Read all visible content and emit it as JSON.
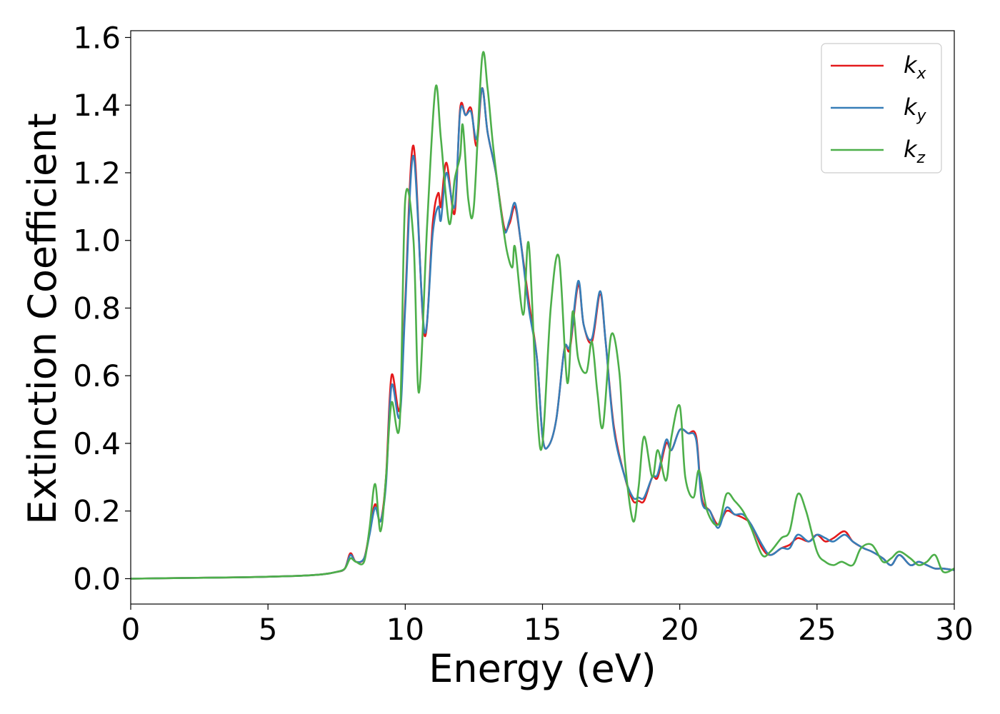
{
  "chart_data": {
    "type": "line",
    "title": "",
    "xlabel": "Energy (eV)",
    "ylabel": "Extinction Coefficient",
    "xlim": [
      0,
      30
    ],
    "ylim": [
      -0.075,
      1.62
    ],
    "xticks": [
      0,
      5,
      10,
      15,
      20,
      25,
      30
    ],
    "yticks": [
      0.0,
      0.2,
      0.4,
      0.6,
      0.8,
      1.0,
      1.2,
      1.4,
      1.6
    ],
    "grid": false,
    "legend_position": "top-right",
    "series": [
      {
        "name": "k_x",
        "label_base": "k",
        "label_sub": "x",
        "color": "#e41a1c",
        "x": [
          0,
          2,
          4,
          6,
          7,
          7.5,
          7.8,
          8.0,
          8.2,
          8.5,
          8.7,
          8.9,
          9.1,
          9.3,
          9.5,
          9.8,
          10.0,
          10.3,
          10.7,
          11.0,
          11.2,
          11.3,
          11.5,
          11.8,
          12.0,
          12.2,
          12.4,
          12.6,
          12.8,
          13.0,
          13.3,
          13.6,
          13.8,
          14.0,
          14.2,
          14.5,
          14.8,
          15.0,
          15.2,
          15.5,
          15.8,
          16.0,
          16.3,
          16.5,
          16.8,
          17.1,
          17.3,
          17.6,
          18.0,
          18.3,
          18.5,
          18.7,
          19.0,
          19.2,
          19.5,
          19.7,
          20.0,
          20.3,
          20.6,
          20.8,
          21.1,
          21.4,
          21.7,
          22.0,
          22.3,
          22.6,
          23.0,
          23.3,
          23.7,
          24.0,
          24.3,
          24.7,
          25.0,
          25.3,
          25.6,
          26.0,
          26.3,
          26.7,
          27.0,
          27.4,
          27.7,
          28.0,
          28.4,
          28.7,
          29.0,
          29.3,
          29.6,
          30.0
        ],
        "values": [
          0.0,
          0.002,
          0.004,
          0.008,
          0.013,
          0.02,
          0.03,
          0.075,
          0.05,
          0.06,
          0.14,
          0.22,
          0.17,
          0.3,
          0.6,
          0.5,
          0.82,
          1.28,
          0.72,
          1.05,
          1.14,
          1.1,
          1.23,
          1.08,
          1.39,
          1.37,
          1.39,
          1.28,
          1.45,
          1.32,
          1.2,
          1.04,
          1.05,
          1.1,
          1.0,
          0.82,
          0.65,
          0.42,
          0.39,
          0.47,
          0.68,
          0.68,
          0.87,
          0.75,
          0.7,
          0.84,
          0.7,
          0.45,
          0.3,
          0.23,
          0.23,
          0.23,
          0.3,
          0.3,
          0.4,
          0.38,
          0.44,
          0.43,
          0.42,
          0.24,
          0.2,
          0.16,
          0.2,
          0.19,
          0.18,
          0.16,
          0.09,
          0.07,
          0.09,
          0.1,
          0.12,
          0.11,
          0.13,
          0.11,
          0.12,
          0.14,
          0.11,
          0.09,
          0.08,
          0.06,
          0.04,
          0.07,
          0.04,
          0.05,
          0.04,
          0.03,
          0.03,
          0.025
        ]
      },
      {
        "name": "k_y",
        "label_base": "k",
        "label_sub": "y",
        "color": "#377eb8",
        "x": [
          0,
          2,
          4,
          6,
          7,
          7.5,
          7.8,
          8.0,
          8.2,
          8.5,
          8.7,
          8.9,
          9.1,
          9.3,
          9.5,
          9.8,
          10.0,
          10.3,
          10.7,
          11.0,
          11.2,
          11.3,
          11.5,
          11.8,
          12.0,
          12.2,
          12.4,
          12.6,
          12.8,
          13.0,
          13.3,
          13.6,
          13.8,
          14.0,
          14.2,
          14.5,
          14.8,
          15.0,
          15.2,
          15.5,
          15.8,
          16.0,
          16.3,
          16.5,
          16.8,
          17.1,
          17.3,
          17.6,
          18.0,
          18.3,
          18.5,
          18.7,
          19.0,
          19.2,
          19.5,
          19.7,
          20.0,
          20.3,
          20.6,
          20.8,
          21.1,
          21.4,
          21.7,
          22.0,
          22.3,
          22.6,
          23.0,
          23.3,
          23.7,
          24.0,
          24.3,
          24.7,
          25.0,
          25.3,
          25.6,
          26.0,
          26.3,
          26.7,
          27.0,
          27.4,
          27.7,
          28.0,
          28.4,
          28.7,
          29.0,
          29.3,
          29.6,
          30.0
        ],
        "values": [
          0.0,
          0.002,
          0.004,
          0.008,
          0.013,
          0.02,
          0.03,
          0.07,
          0.05,
          0.06,
          0.13,
          0.21,
          0.17,
          0.28,
          0.57,
          0.48,
          0.8,
          1.25,
          0.73,
          1.02,
          1.1,
          1.06,
          1.2,
          1.1,
          1.38,
          1.37,
          1.38,
          1.3,
          1.45,
          1.32,
          1.2,
          1.03,
          1.06,
          1.11,
          1.0,
          0.8,
          0.65,
          0.42,
          0.39,
          0.47,
          0.68,
          0.69,
          0.88,
          0.75,
          0.71,
          0.85,
          0.7,
          0.44,
          0.3,
          0.24,
          0.24,
          0.24,
          0.3,
          0.31,
          0.41,
          0.38,
          0.44,
          0.43,
          0.41,
          0.23,
          0.2,
          0.15,
          0.21,
          0.19,
          0.19,
          0.16,
          0.1,
          0.07,
          0.09,
          0.09,
          0.13,
          0.11,
          0.13,
          0.12,
          0.11,
          0.13,
          0.11,
          0.09,
          0.08,
          0.06,
          0.04,
          0.07,
          0.04,
          0.05,
          0.04,
          0.03,
          0.03,
          0.025
        ]
      },
      {
        "name": "k_z",
        "label_base": "k",
        "label_sub": "z",
        "color": "#4daf4a",
        "x": [
          0,
          2,
          4,
          6,
          7,
          7.5,
          7.8,
          8.0,
          8.2,
          8.5,
          8.7,
          8.9,
          9.1,
          9.3,
          9.5,
          9.8,
          10.0,
          10.3,
          10.5,
          10.8,
          11.1,
          11.3,
          11.6,
          11.8,
          12.0,
          12.1,
          12.3,
          12.5,
          12.8,
          13.0,
          13.2,
          13.5,
          13.7,
          13.9,
          14.0,
          14.3,
          14.5,
          14.8,
          15.0,
          15.3,
          15.6,
          15.9,
          16.1,
          16.3,
          16.6,
          16.8,
          17.0,
          17.2,
          17.5,
          17.8,
          18.0,
          18.3,
          18.5,
          18.7,
          19.0,
          19.2,
          19.5,
          19.7,
          20.0,
          20.2,
          20.5,
          20.7,
          21.0,
          21.4,
          21.7,
          22.0,
          22.3,
          22.6,
          23.0,
          23.3,
          23.7,
          24.0,
          24.3,
          24.6,
          25.0,
          25.3,
          25.6,
          25.9,
          26.3,
          26.6,
          27.0,
          27.4,
          27.7,
          28.0,
          28.4,
          28.7,
          29.0,
          29.3,
          29.6,
          30.0
        ],
        "values": [
          0.0,
          0.002,
          0.004,
          0.008,
          0.013,
          0.02,
          0.03,
          0.06,
          0.05,
          0.05,
          0.15,
          0.28,
          0.14,
          0.3,
          0.52,
          0.46,
          1.12,
          1.0,
          0.55,
          1.05,
          1.45,
          1.3,
          1.05,
          1.18,
          1.25,
          1.34,
          1.12,
          1.1,
          1.54,
          1.45,
          1.28,
          1.08,
          0.97,
          0.92,
          0.98,
          0.78,
          0.99,
          0.5,
          0.4,
          0.8,
          0.95,
          0.58,
          0.79,
          0.65,
          0.61,
          0.7,
          0.55,
          0.45,
          0.72,
          0.61,
          0.35,
          0.17,
          0.27,
          0.42,
          0.3,
          0.38,
          0.29,
          0.42,
          0.51,
          0.3,
          0.24,
          0.32,
          0.2,
          0.16,
          0.25,
          0.23,
          0.2,
          0.15,
          0.07,
          0.08,
          0.12,
          0.14,
          0.25,
          0.2,
          0.08,
          0.05,
          0.04,
          0.05,
          0.04,
          0.09,
          0.1,
          0.05,
          0.06,
          0.08,
          0.06,
          0.04,
          0.05,
          0.07,
          0.02,
          0.03
        ]
      }
    ]
  }
}
